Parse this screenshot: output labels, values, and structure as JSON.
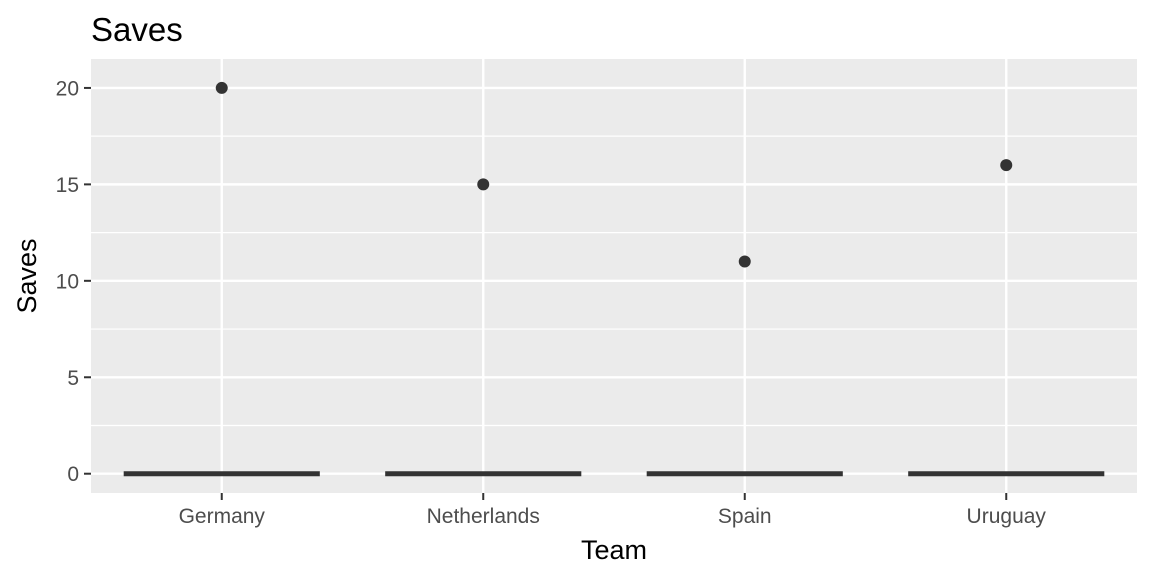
{
  "chart_data": {
    "type": "boxplot",
    "title": "Saves",
    "xlabel": "Team",
    "ylabel": "Saves",
    "categories": [
      "Germany",
      "Netherlands",
      "Spain",
      "Uruguay"
    ],
    "box_values": [
      0,
      0,
      0,
      0
    ],
    "outliers": [
      {
        "category": "Germany",
        "value": 20
      },
      {
        "category": "Netherlands",
        "value": 15
      },
      {
        "category": "Spain",
        "value": 11
      },
      {
        "category": "Uruguay",
        "value": 16
      }
    ],
    "ylim": [
      -1,
      21.5
    ],
    "yticks": [
      0,
      5,
      10,
      15,
      20
    ],
    "ytick_labels": [
      "0",
      "5",
      "10",
      "15",
      "20"
    ],
    "grid": true,
    "legend": "none",
    "colors": {
      "panel": "#ebebeb",
      "grid": "#ffffff",
      "marks": "#333333",
      "tick_text": "#4d4d4d"
    }
  }
}
